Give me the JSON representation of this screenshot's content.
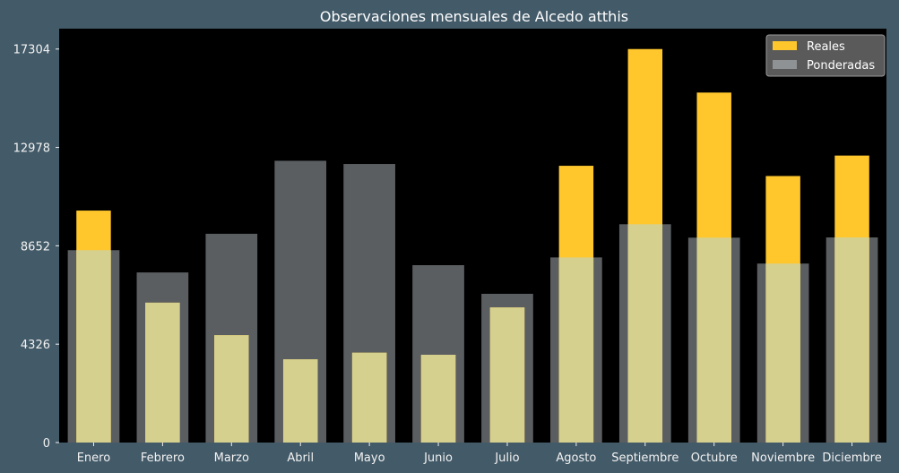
{
  "chart_data": {
    "type": "bar",
    "title": "Observaciones mensuales de Alcedo atthis",
    "xlabel": "",
    "ylabel": "",
    "categories": [
      "Enero",
      "Febrero",
      "Marzo",
      "Abril",
      "Mayo",
      "Junio",
      "Julio",
      "Agosto",
      "Septiembre",
      "Octubre",
      "Noviembre",
      "Diciembre"
    ],
    "series": [
      {
        "name": "Reales",
        "color": "#ffc72c",
        "values": [
          10200,
          6150,
          4720,
          3660,
          3950,
          3860,
          5940,
          12170,
          17304,
          15390,
          11720,
          12620
        ]
      },
      {
        "name": "Ponderadas",
        "color": "#d9e1e6",
        "values": [
          8460,
          7480,
          9180,
          12390,
          12250,
          7800,
          6540,
          8140,
          9600,
          9010,
          7870,
          9020
        ]
      }
    ],
    "yticks": [
      0,
      4326,
      8652,
      12978,
      17304
    ],
    "ylim": [
      0,
      18200
    ],
    "grid": false,
    "legend_position": "top-right",
    "plot_background": "#000000"
  }
}
